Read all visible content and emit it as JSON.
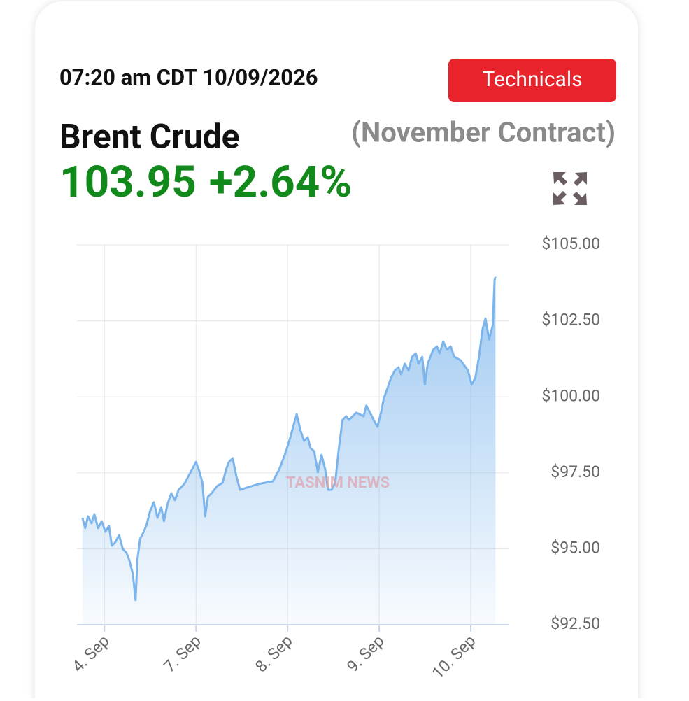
{
  "header": {
    "timestamp": "07:20 am CDT 10/09/2026",
    "button": "Technicals",
    "instrument": "Brent Crude",
    "contract": "(November Contract)",
    "price": "103.95",
    "change": "+2.64%"
  },
  "watermark": "TASNIM NEWS",
  "chart_data": {
    "type": "area",
    "x": [
      -0.24,
      -0.21,
      -0.18,
      -0.14,
      -0.11,
      -0.07,
      -0.03,
      0.01,
      0.05,
      0.08,
      0.12,
      0.16,
      0.2,
      0.24,
      0.27,
      0.31,
      0.34,
      0.36,
      0.39,
      0.43,
      0.46,
      0.5,
      0.54,
      0.58,
      0.62,
      0.65,
      0.69,
      0.73,
      0.77,
      0.81,
      0.85,
      0.88,
      0.92,
      0.96,
      1.0,
      1.04,
      1.07,
      1.1,
      1.13,
      1.17,
      1.23,
      1.29,
      1.33,
      1.36,
      1.4,
      1.44,
      1.48,
      1.53,
      1.68,
      1.84,
      1.91,
      1.97,
      2.03,
      2.06,
      2.1,
      2.14,
      2.18,
      2.22,
      2.25,
      2.29,
      2.33,
      2.37,
      2.41,
      2.44,
      2.48,
      2.52,
      2.56,
      2.6,
      2.64,
      2.67,
      2.75,
      2.83,
      2.86,
      2.9,
      2.94,
      2.98,
      3.02,
      3.05,
      3.09,
      3.13,
      3.17,
      3.21,
      3.24,
      3.28,
      3.32,
      3.36,
      3.4,
      3.43,
      3.47,
      3.5,
      3.53,
      3.59,
      3.63,
      3.66,
      3.7,
      3.74,
      3.78,
      3.82,
      3.89,
      3.97,
      4.01,
      4.05,
      4.09,
      4.13,
      4.16,
      4.2,
      4.24,
      4.26,
      4.27
    ],
    "series": [
      {
        "name": "Brent Crude",
        "color": "#7cb5ec",
        "values": [
          96.02,
          95.68,
          96.07,
          95.84,
          96.14,
          95.68,
          95.91,
          95.56,
          95.75,
          95.1,
          95.22,
          95.45,
          94.99,
          94.87,
          94.64,
          94.18,
          93.31,
          94.64,
          95.33,
          95.56,
          95.79,
          96.25,
          96.53,
          96.02,
          96.37,
          95.91,
          96.48,
          96.83,
          96.6,
          96.94,
          97.06,
          97.17,
          97.4,
          97.63,
          97.86,
          97.52,
          97.17,
          96.07,
          96.71,
          96.83,
          97.06,
          97.17,
          97.63,
          97.86,
          97.98,
          97.4,
          96.94,
          96.99,
          97.13,
          97.22,
          97.63,
          98.09,
          98.67,
          99.01,
          99.43,
          98.9,
          98.55,
          98.67,
          98.32,
          98.21,
          97.52,
          98.09,
          97.63,
          96.94,
          96.94,
          97.17,
          98.32,
          99.24,
          99.36,
          99.24,
          99.48,
          99.36,
          99.71,
          99.48,
          99.24,
          99.01,
          99.48,
          99.94,
          100.28,
          100.63,
          100.86,
          100.97,
          100.74,
          101.09,
          100.86,
          101.32,
          101.43,
          101.09,
          101.32,
          100.4,
          101.09,
          101.55,
          101.66,
          101.43,
          101.82,
          101.55,
          101.66,
          101.32,
          101.2,
          100.86,
          100.4,
          100.63,
          101.32,
          102.24,
          102.58,
          101.89,
          102.35,
          103.85,
          103.95
        ]
      }
    ],
    "xlim": [
      -0.3,
      4.42
    ],
    "xticks": [
      {
        "value": 0,
        "label": "4. Sep"
      },
      {
        "value": 1,
        "label": "7. Sep"
      },
      {
        "value": 2,
        "label": "8. Sep"
      },
      {
        "value": 3,
        "label": "9. Sep"
      },
      {
        "value": 4,
        "label": "10. Sep"
      }
    ],
    "ylim": [
      92.5,
      105
    ],
    "yticks": [
      {
        "value": 92.5,
        "label": "$92.50"
      },
      {
        "value": 95,
        "label": "$95.00"
      },
      {
        "value": 97.5,
        "label": "$97.50"
      },
      {
        "value": 100,
        "label": "$100.00"
      },
      {
        "value": 102.5,
        "label": "$102.50"
      },
      {
        "value": 105,
        "label": "$105.00"
      }
    ],
    "grid": true
  }
}
